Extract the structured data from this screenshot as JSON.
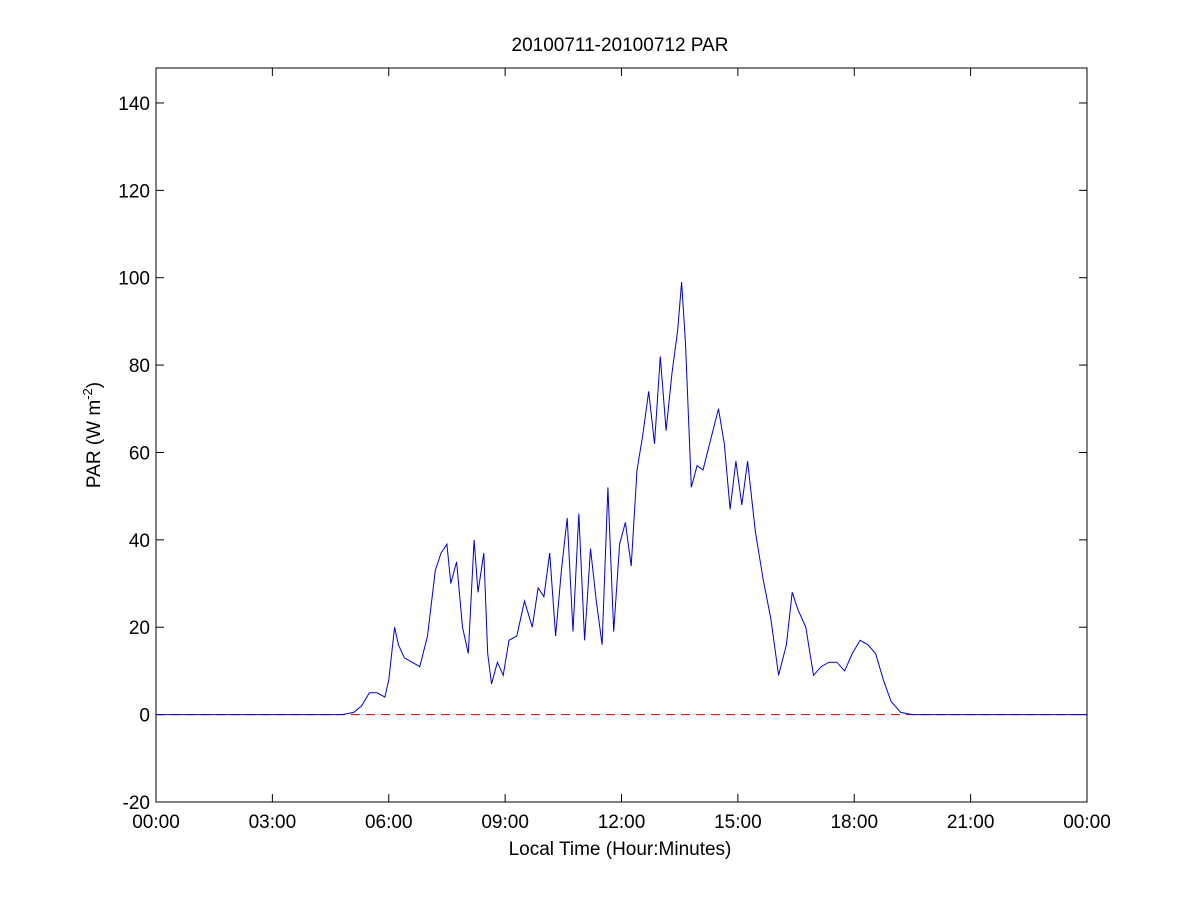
{
  "chart_data": {
    "type": "line",
    "title": "20100711-20100712 PAR",
    "xlabel": "Local Time (Hour:Minutes)",
    "ylabel": {
      "base": "PAR (W m",
      "superscript": "-2",
      "close": ")"
    },
    "xlim": [
      0,
      24
    ],
    "ylim": [
      -20,
      148
    ],
    "x_ticks": [
      {
        "value": 0,
        "label": "00:00"
      },
      {
        "value": 3,
        "label": "03:00"
      },
      {
        "value": 6,
        "label": "06:00"
      },
      {
        "value": 9,
        "label": "09:00"
      },
      {
        "value": 12,
        "label": "12:00"
      },
      {
        "value": 15,
        "label": "15:00"
      },
      {
        "value": 18,
        "label": "18:00"
      },
      {
        "value": 21,
        "label": "21:00"
      },
      {
        "value": 24,
        "label": "00:00"
      }
    ],
    "y_ticks": [
      {
        "value": -20,
        "label": "-20"
      },
      {
        "value": 0,
        "label": "0"
      },
      {
        "value": 20,
        "label": "20"
      },
      {
        "value": 40,
        "label": "40"
      },
      {
        "value": 60,
        "label": "60"
      },
      {
        "value": 80,
        "label": "80"
      },
      {
        "value": 100,
        "label": "100"
      },
      {
        "value": 120,
        "label": "120"
      },
      {
        "value": 140,
        "label": "140"
      }
    ],
    "grid": false,
    "colors": {
      "series": "#0000cc",
      "reference": "#cc0000",
      "axes": "#000000"
    },
    "reference_line": {
      "y": 0,
      "style": "dashed"
    },
    "series": [
      {
        "x": [
          0,
          1,
          2,
          3,
          4,
          4.8,
          5.1,
          5.3,
          5.5,
          5.7,
          5.9,
          6.0,
          6.15,
          6.25,
          6.4,
          6.6,
          6.8,
          7.0,
          7.2,
          7.35,
          7.5,
          7.6,
          7.75,
          7.9,
          8.05,
          8.2,
          8.3,
          8.45,
          8.55,
          8.65,
          8.8,
          8.95,
          9.1,
          9.3,
          9.5,
          9.7,
          9.85,
          10.0,
          10.15,
          10.3,
          10.45,
          10.6,
          10.75,
          10.9,
          11.05,
          11.2,
          11.35,
          11.5,
          11.65,
          11.8,
          11.95,
          12.1,
          12.25,
          12.4,
          12.55,
          12.7,
          12.85,
          13.0,
          13.15,
          13.3,
          13.45,
          13.55,
          13.65,
          13.8,
          13.95,
          14.1,
          14.3,
          14.5,
          14.65,
          14.8,
          14.95,
          15.1,
          15.25,
          15.45,
          15.65,
          15.85,
          16.05,
          16.25,
          16.4,
          16.55,
          16.75,
          16.95,
          17.15,
          17.35,
          17.55,
          17.75,
          17.95,
          18.15,
          18.35,
          18.55,
          18.75,
          18.95,
          19.2,
          19.5,
          20,
          21,
          22,
          23,
          24
        ],
        "y": [
          0,
          0,
          0,
          0,
          0,
          0,
          0.5,
          2,
          5,
          5,
          4,
          8,
          20,
          16,
          13,
          12,
          11,
          18,
          33,
          37,
          39,
          30,
          35,
          20,
          14,
          40,
          28,
          37,
          14,
          7,
          12,
          9,
          17,
          18,
          26,
          20,
          29,
          27,
          37,
          18,
          33,
          45,
          19,
          46,
          17,
          38,
          26,
          16,
          52,
          19,
          39,
          44,
          34,
          56,
          64,
          74,
          62,
          82,
          65,
          78,
          88,
          99,
          85,
          52,
          57,
          56,
          63,
          70,
          62,
          47,
          58,
          48,
          58,
          42,
          31,
          22,
          9,
          16,
          28,
          24,
          20,
          9,
          11,
          12,
          12,
          10,
          14,
          17,
          16,
          14,
          8,
          3,
          0.5,
          0,
          0,
          0,
          0,
          0,
          0
        ]
      }
    ]
  }
}
